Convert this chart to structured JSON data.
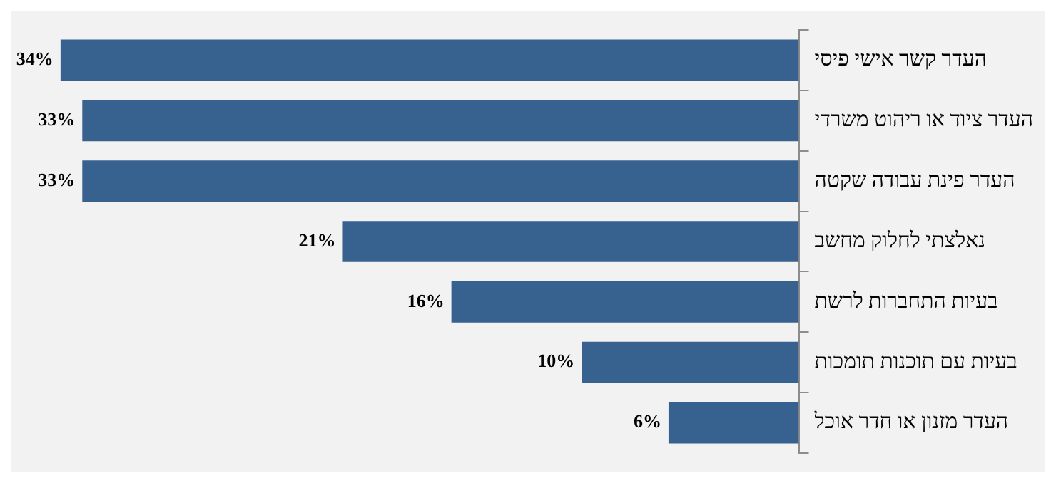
{
  "chart_data": {
    "type": "bar",
    "orientation": "horizontal",
    "categories": [
      "העדר קשר אישי פיסי",
      "העדר ציוד או ריהוט משרדי",
      "העדר פינת עבודה שקטה",
      "נאלצתי לחלוק מחשב",
      "בעיות התחברות לרשת",
      "בעיות עם תוכנות תומכות",
      "העדר מזנון או חדר אוכל"
    ],
    "values": [
      34,
      33,
      33,
      21,
      16,
      10,
      6
    ],
    "value_labels": [
      "34%",
      "33%",
      "33%",
      "21%",
      "16%",
      "10%",
      "6%"
    ],
    "color": "#37618f",
    "xlim": [
      36,
      0
    ],
    "tick_labels": "y",
    "grid": false,
    "legend": false
  }
}
